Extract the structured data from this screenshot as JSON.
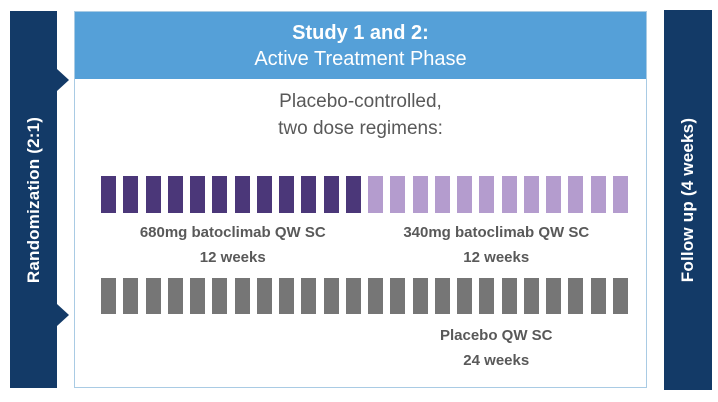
{
  "header": {
    "title_line1": "Study 1 and 2:",
    "title_line2": "Active Treatment Phase"
  },
  "left_banner": {
    "label": "Randomization (2:1)"
  },
  "right_banner": {
    "label": "Follow up (4 weeks)"
  },
  "intro": {
    "line1": "Placebo-controlled,",
    "line2": "two dose regimens:"
  },
  "colors": {
    "navy": "#133a67",
    "header_blue": "#55a0d8",
    "box_border": "#a9cbe4",
    "dark_purple": "#4b3779",
    "light_purple": "#b49cce",
    "gray": "#767676",
    "text_gray": "#595959",
    "white": "#ffffff"
  },
  "arms": [
    {
      "segments": [
        {
          "name": "680mg-batoclimab",
          "label_line1": "680mg batoclimab QW SC",
          "label_line2": "12 weeks",
          "color_key": "dark_purple",
          "ticks": 12
        },
        {
          "name": "340mg-batoclimab",
          "label_line1": "340mg batoclimab QW SC",
          "label_line2": "12 weeks",
          "color_key": "light_purple",
          "ticks": 12
        }
      ]
    },
    {
      "segments": [
        {
          "name": "placebo",
          "label_line1": "Placebo QW SC",
          "label_line2": "24 weeks",
          "color_key": "gray",
          "ticks": 24
        }
      ]
    }
  ]
}
